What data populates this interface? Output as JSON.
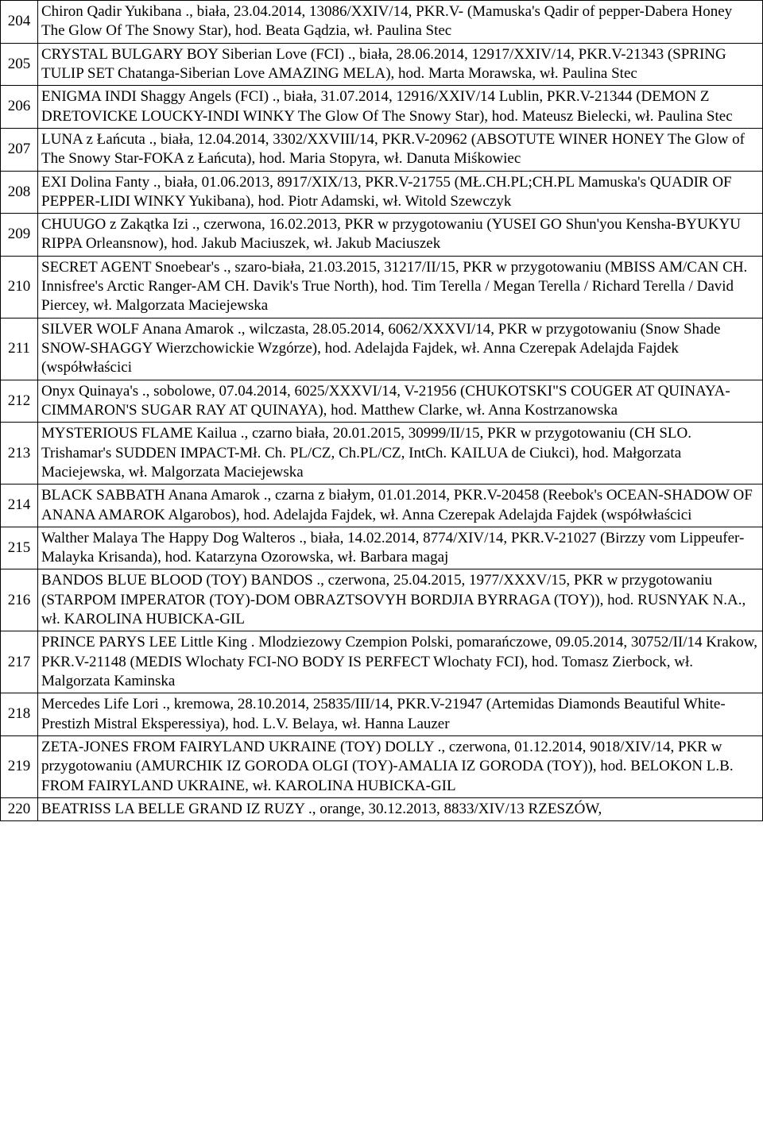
{
  "rows": [
    {
      "n": "204",
      "t": " Chiron Qadir Yukibana ., biała, 23.04.2014, 13086/XXIV/14, PKR.V- (Mamuska's Qadir of pepper-Dabera Honey The Glow Of The Snowy Star), hod. Beata Gądzia, wł. Paulina Stec"
    },
    {
      "n": "205",
      "t": " CRYSTAL BULGARY BOY Siberian Love (FCI) ., biała, 28.06.2014, 12917/XXIV/14, PKR.V-21343 (SPRING TULIP SET Chatanga-Siberian Love AMAZING MELA), hod. Marta Morawska, wł. Paulina Stec"
    },
    {
      "n": "206",
      "t": " ENIGMA INDI Shaggy Angels (FCI) ., biała, 31.07.2014, 12916/XXIV/14 Lublin, PKR.V-21344 (DEMON Z DRETOVICKE LOUCKY-INDI WINKY The Glow Of The Snowy Star), hod. Mateusz Bielecki, wł. Paulina Stec"
    },
    {
      "n": "207",
      "t": " LUNA z Łańcuta ., biała, 12.04.2014, 3302/XXVIII/14, PKR.V-20962 (ABSOTUTE WINER HONEY The Glow of The Snowy Star-FOKA z Łańcuta), hod. Maria Stopyra, wł. Danuta Miśkowiec"
    },
    {
      "n": "208",
      "t": " EXI Dolina Fanty ., biała, 01.06.2013, 8917/XIX/13, PKR.V-21755 (MŁ.CH.PL;CH.PL Mamuska's QUADIR OF PEPPER-LIDI WINKY Yukibana), hod. Piotr Adamski, wł. Witold Szewczyk"
    },
    {
      "n": "209",
      "t": " CHUUGO z Zakątka Izi ., czerwona, 16.02.2013, PKR w przygotowaniu (YUSEI GO Shun'you Kensha-BYUKYU RIPPA Orleansnow), hod. Jakub Maciuszek, wł. Jakub Maciuszek"
    },
    {
      "n": "210",
      "t": " SECRET AGENT Snoebear's ., szaro-biała, 21.03.2015, 31217/II/15, PKR w przygotowaniu (MBISS AM/CAN CH. Innisfree's Arctic Ranger-AM CH. Davik's True North), hod. Tim Terella / Megan Terella / Richard Terella / David Piercey, wł. Malgorzata Maciejewska"
    },
    {
      "n": "211",
      "t": " SILVER WOLF Anana Amarok ., wilczasta, 28.05.2014, 6062/XXXVI/14, PKR w przygotowaniu (Snow Shade SNOW-SHAGGY Wierzchowickie Wzgórze), hod. Adelajda Fajdek, wł. Anna Czerepak Adelajda Fajdek (współwłaścici"
    },
    {
      "n": "212",
      "t": " Onyx Quinaya's ., sobolowe, 07.04.2014, 6025/XXXVI/14, V-21956 (CHUKOTSKI\"S COUGER AT QUINAYA-CIMMARON'S SUGAR RAY AT QUINAYA), hod. Matthew Clarke, wł. Anna Kostrzanowska"
    },
    {
      "n": "213",
      "t": " MYSTERIOUS FLAME Kailua ., czarno  biała, 20.01.2015, 30999/II/15, PKR w przygotowaniu (CH SLO. Trishamar's SUDDEN IMPACT-Mł. Ch. PL/CZ, Ch.PL/CZ, IntCh. KAILUA de Ciukci), hod. Małgorzata Maciejewska, wł. Malgorzata Maciejewska"
    },
    {
      "n": "214",
      "t": " BLACK SABBATH Anana Amarok ., czarna z białym, 01.01.2014, PKR.V-20458 (Reebok's OCEAN-SHADOW OF ANANA AMAROK Algarobos), hod. Adelajda Fajdek, wł. Anna Czerepak Adelajda Fajdek (współwłaścici"
    },
    {
      "n": "215",
      "t": " Walther Malaya The Happy Dog Walteros ., biała, 14.02.2014, 8774/XIV/14, PKR.V-21027 (Birzzy vom Lippeufer-Malayka Krisanda), hod. Katarzyna Ozorowska, wł. Barbara magaj"
    },
    {
      "n": "216",
      "t": " BANDOS BLUE BLOOD (TOY) BANDOS ., czerwona, 25.04.2015, 1977/XXXV/15, PKR w przygotowaniu (STARPOM IMPERATOR (TOY)-DOM OBRAZTSOVYH BORDJIA BYRRAGA (TOY)), hod. RUSNYAK N.A., wł. KAROLINA HUBICKA-GIL"
    },
    {
      "n": "217",
      "t": " PRINCE PARYS LEE Little King . Mlodziezowy Czempion Polski, pomarańczowe, 09.05.2014, 30752/II/14 Krakow, PKR.V-21148 (MEDIS Wlochaty FCI-NO BODY IS PERFECT Wlochaty FCI), hod. Tomasz Zierbock, wł. Malgorzata Kaminska"
    },
    {
      "n": "218",
      "t": " Mercedes Life Lori ., kremowa, 28.10.2014, 25835/III/14, PKR.V-21947 (Artemidas Diamonds Beautiful White-Prestizh Mistral Eksperessiya), hod. L.V. Belaya, wł. Hanna Lauzer"
    },
    {
      "n": "219",
      "t": " ZETA-JONES FROM FAIRYLAND UKRAINE (TOY) DOLLY ., czerwona, 01.12.2014, 9018/XIV/14, PKR w przygotowaniu (AMURCHIK IZ GORODA OLGI (TOY)-AMALIA IZ GORODA (TOY)), hod. BELOKON L.B. FROM FAIRYLAND UKRAINE, wł. KAROLINA HUBICKA-GIL"
    },
    {
      "n": "220",
      "t": " BEATRISS LA BELLE GRAND IZ RUZY ., orange, 30.12.2013, 8833/XIV/13 RZESZÓW,"
    }
  ]
}
